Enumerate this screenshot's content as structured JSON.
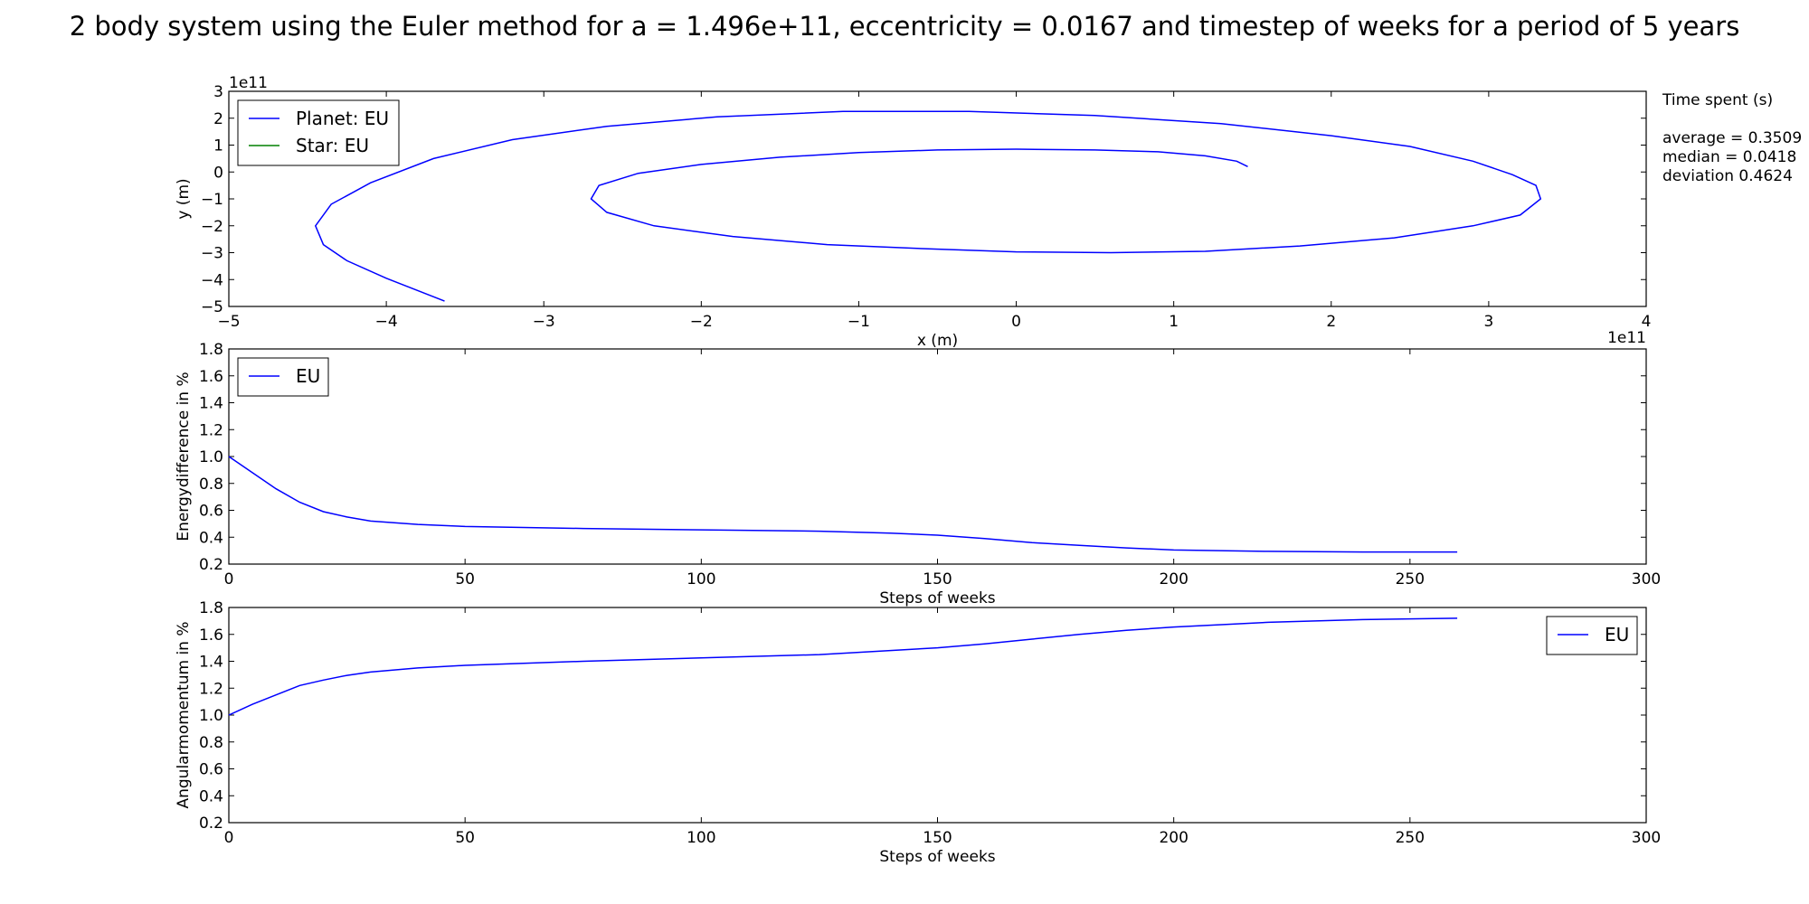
{
  "figure": {
    "title": "2 body system using the Euler method for a = 1.496e+11, eccentricity = 0.0167 and timestep of weeks for a period of 5 years"
  },
  "stats": {
    "title": "Time spent (s)",
    "lines": [
      "average = 0.3509",
      "median = 0.0418",
      "deviation 0.4624"
    ]
  },
  "colors": {
    "planet": "#0000ff",
    "star": "#008000"
  },
  "chart_data": [
    {
      "type": "line",
      "xlabel": "x (m)",
      "ylabel": "y (m)",
      "x_offset_label": "1e11",
      "y_offset_label": "1e11",
      "xlim": [
        -5,
        4
      ],
      "ylim": [
        -5,
        3
      ],
      "xticks": [
        -5,
        -4,
        -3,
        -2,
        -1,
        0,
        1,
        2,
        3,
        4
      ],
      "yticks": [
        -5,
        -4,
        -3,
        -2,
        -1,
        0,
        1,
        2,
        3
      ],
      "legend_position": "upper-left",
      "series": [
        {
          "name": "Planet: EU",
          "color": "#0000ff",
          "x": [
            1.47,
            1.4,
            1.2,
            0.9,
            0.5,
            0.0,
            -0.5,
            -1.0,
            -1.5,
            -2.0,
            -2.4,
            -2.65,
            -2.7,
            -2.6,
            -2.3,
            -1.8,
            -1.2,
            -0.6,
            0.0,
            0.6,
            1.2,
            1.8,
            2.4,
            2.9,
            3.2,
            3.33,
            3.3,
            3.15,
            2.9,
            2.5,
            2.0,
            1.3,
            0.5,
            -0.3,
            -1.1,
            -1.9,
            -2.6,
            -3.2,
            -3.7,
            -4.1,
            -4.35,
            -4.45,
            -4.4,
            -4.25,
            -4.0,
            -3.63
          ],
          "y": [
            0.2,
            0.4,
            0.6,
            0.75,
            0.82,
            0.85,
            0.82,
            0.72,
            0.55,
            0.28,
            -0.05,
            -0.5,
            -1.0,
            -1.5,
            -2.0,
            -2.4,
            -2.7,
            -2.85,
            -2.97,
            -3.0,
            -2.95,
            -2.75,
            -2.45,
            -2.0,
            -1.6,
            -1.0,
            -0.5,
            -0.1,
            0.4,
            0.95,
            1.35,
            1.8,
            2.1,
            2.25,
            2.25,
            2.05,
            1.7,
            1.2,
            0.5,
            -0.4,
            -1.2,
            -2.0,
            -2.7,
            -3.3,
            -3.95,
            -4.8
          ]
        },
        {
          "name": "Star: EU",
          "color": "#008000",
          "x": [
            0.0
          ],
          "y": [
            0.0
          ]
        }
      ]
    },
    {
      "type": "line",
      "xlabel": "Steps of weeks",
      "ylabel": "Energydifference in %",
      "xlim": [
        0,
        300
      ],
      "ylim": [
        0.2,
        1.8
      ],
      "xticks": [
        0,
        50,
        100,
        150,
        200,
        250,
        300
      ],
      "yticks": [
        0.2,
        0.4,
        0.6,
        0.8,
        1.0,
        1.2,
        1.4,
        1.6,
        1.8
      ],
      "legend_position": "upper-left",
      "series": [
        {
          "name": "EU",
          "color": "#0000ff",
          "x": [
            0,
            5,
            10,
            15,
            20,
            25,
            30,
            40,
            50,
            75,
            100,
            125,
            140,
            150,
            160,
            170,
            180,
            190,
            200,
            220,
            240,
            260
          ],
          "y": [
            1.0,
            0.88,
            0.76,
            0.66,
            0.59,
            0.55,
            0.52,
            0.495,
            0.48,
            0.465,
            0.455,
            0.445,
            0.43,
            0.415,
            0.39,
            0.36,
            0.34,
            0.32,
            0.305,
            0.295,
            0.29,
            0.29
          ]
        }
      ]
    },
    {
      "type": "line",
      "xlabel": "Steps of weeks",
      "ylabel": "Angularmomentum in  %",
      "xlim": [
        0,
        300
      ],
      "ylim": [
        0.2,
        1.8
      ],
      "xticks": [
        0,
        50,
        100,
        150,
        200,
        250,
        300
      ],
      "yticks": [
        0.2,
        0.4,
        0.6,
        0.8,
        1.0,
        1.2,
        1.4,
        1.6,
        1.8
      ],
      "legend_position": "upper-right",
      "series": [
        {
          "name": "EU",
          "color": "#0000ff",
          "x": [
            0,
            5,
            10,
            15,
            20,
            25,
            30,
            40,
            50,
            75,
            100,
            125,
            140,
            150,
            160,
            170,
            180,
            190,
            200,
            220,
            240,
            260
          ],
          "y": [
            1.0,
            1.08,
            1.15,
            1.22,
            1.26,
            1.295,
            1.32,
            1.35,
            1.37,
            1.4,
            1.425,
            1.45,
            1.48,
            1.5,
            1.53,
            1.565,
            1.6,
            1.63,
            1.655,
            1.69,
            1.71,
            1.72
          ]
        }
      ]
    }
  ]
}
